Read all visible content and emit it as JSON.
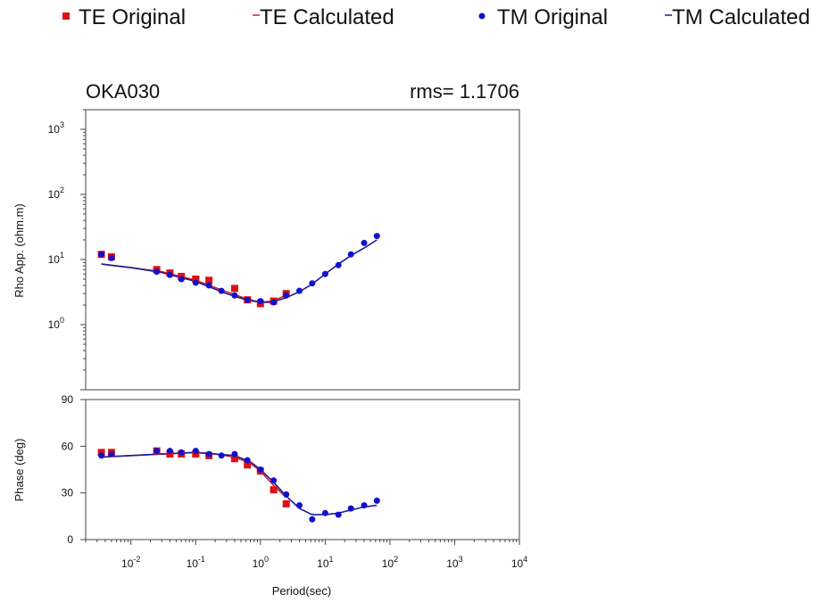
{
  "legend": {
    "te_original": "TE Original",
    "te_calculated": "TE Calculated",
    "tm_original": "TM Original",
    "tm_calculated": "TM Calculated"
  },
  "site": "OKA030",
  "rms": "rms= 1.1706",
  "colors": {
    "te": "#dd1111",
    "tm": "#1111cc",
    "te_line": "#cc2222",
    "tm_line": "#1a1a99"
  },
  "chart_data": [
    {
      "type": "scatter",
      "title": "OKA030",
      "annotation": "rms= 1.1706",
      "xlabel": "",
      "ylabel": "Rho App. (ohm.m)",
      "xscale": "log",
      "yscale": "log",
      "xlim": [
        0.002,
        10000
      ],
      "ylim": [
        0.1,
        2000
      ],
      "yticks": [
        "10^0",
        "10^1",
        "10^2",
        "10^3"
      ],
      "series": [
        {
          "name": "TE Original",
          "marker": "square",
          "x": [
            0.0035,
            0.005,
            0.025,
            0.04,
            0.06,
            0.1,
            0.16,
            0.4,
            0.63,
            1.0,
            1.6,
            2.5
          ],
          "y": [
            12,
            11,
            7,
            6.2,
            5.5,
            5.0,
            4.8,
            3.6,
            2.4,
            2.1,
            2.3,
            3.0
          ]
        },
        {
          "name": "TE Calculated",
          "marker": "line",
          "x": [
            0.0035,
            0.01,
            0.03,
            0.1,
            0.3,
            0.6,
            1.0,
            1.5,
            2.5
          ],
          "y": [
            8.5,
            7.5,
            6.5,
            4.8,
            3.2,
            2.5,
            2.2,
            2.3,
            2.8
          ]
        },
        {
          "name": "TM Original",
          "marker": "circle",
          "x": [
            0.0035,
            0.005,
            0.025,
            0.04,
            0.06,
            0.1,
            0.16,
            0.25,
            0.4,
            0.63,
            1.0,
            1.6,
            2.5,
            4.0,
            6.3,
            10,
            16,
            25,
            40,
            63
          ],
          "y": [
            12,
            10.5,
            6.5,
            5.8,
            5.0,
            4.4,
            4.0,
            3.3,
            2.8,
            2.4,
            2.3,
            2.2,
            2.8,
            3.3,
            4.3,
            6.0,
            8.2,
            12,
            18,
            23
          ]
        },
        {
          "name": "TM Calculated",
          "marker": "line",
          "x": [
            0.0035,
            0.01,
            0.03,
            0.1,
            0.3,
            0.6,
            1.0,
            1.5,
            2.5,
            4,
            6.3,
            10,
            16,
            25,
            40,
            63
          ],
          "y": [
            8.5,
            7.5,
            6.3,
            4.6,
            3.0,
            2.4,
            2.2,
            2.2,
            2.6,
            3.2,
            4.2,
            6.0,
            8.5,
            11.5,
            15,
            20
          ]
        }
      ]
    },
    {
      "type": "scatter",
      "xlabel": "Period(sec)",
      "ylabel": "Phase (deg)",
      "xscale": "log",
      "xlim": [
        0.002,
        10000
      ],
      "ylim": [
        0,
        90
      ],
      "yticks": [
        "0",
        "30",
        "60",
        "90"
      ],
      "xticks": [
        "10^-2",
        "10^-1",
        "10^0",
        "10^1",
        "10^2",
        "10^3",
        "10^4"
      ],
      "series": [
        {
          "name": "TE Original",
          "marker": "square",
          "x": [
            0.0035,
            0.005,
            0.025,
            0.04,
            0.06,
            0.1,
            0.16,
            0.4,
            0.63,
            1.0,
            1.6,
            2.5
          ],
          "y": [
            56,
            56,
            57,
            55,
            55,
            55,
            54,
            52,
            48,
            44,
            32,
            23
          ]
        },
        {
          "name": "TE Calculated",
          "marker": "line",
          "x": [
            0.0035,
            0.01,
            0.03,
            0.1,
            0.2,
            0.4,
            0.7,
            1.0,
            1.5,
            2.5
          ],
          "y": [
            53,
            54,
            55,
            56,
            55,
            53,
            49,
            44,
            36,
            27
          ]
        },
        {
          "name": "TM Original",
          "marker": "circle",
          "x": [
            0.0035,
            0.005,
            0.025,
            0.04,
            0.06,
            0.1,
            0.16,
            0.25,
            0.4,
            0.63,
            1.0,
            1.6,
            2.5,
            4.0,
            6.3,
            10,
            16,
            25,
            40,
            63
          ],
          "y": [
            54,
            55,
            57,
            57,
            56,
            57,
            55,
            54,
            55,
            51,
            45,
            38,
            29,
            22,
            13,
            17,
            16,
            20,
            22,
            25
          ]
        },
        {
          "name": "TM Calculated",
          "marker": "line",
          "x": [
            0.0035,
            0.01,
            0.03,
            0.1,
            0.2,
            0.4,
            0.7,
            1.0,
            1.5,
            2.5,
            4,
            6.3,
            10,
            16,
            25,
            40,
            63
          ],
          "y": [
            53,
            54,
            55,
            56,
            55,
            54,
            50,
            45,
            38,
            28,
            20,
            16,
            16,
            17,
            19,
            21,
            22
          ]
        }
      ]
    }
  ]
}
